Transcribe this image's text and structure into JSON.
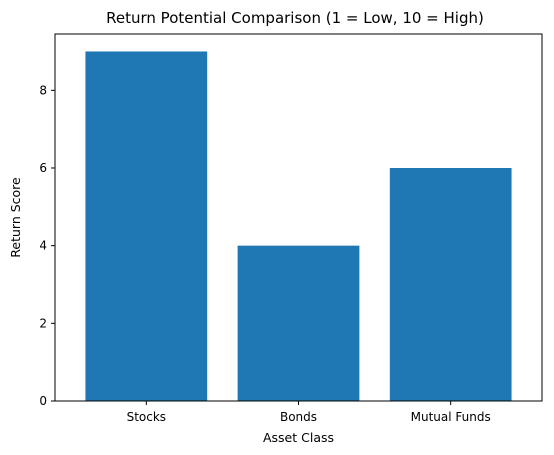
{
  "chart_data": {
    "type": "bar",
    "title": "Return Potential Comparison (1 = Low, 10 = High)",
    "xlabel": "Asset Class",
    "ylabel": "Return Score",
    "categories": [
      "Stocks",
      "Bonds",
      "Mutual Funds"
    ],
    "values": [
      9,
      4,
      6
    ],
    "ylim": [
      0,
      9.45
    ],
    "yticks": [
      0,
      2,
      4,
      6,
      8
    ],
    "bar_color": "#1f77b4",
    "grid": false,
    "legend": "none"
  }
}
